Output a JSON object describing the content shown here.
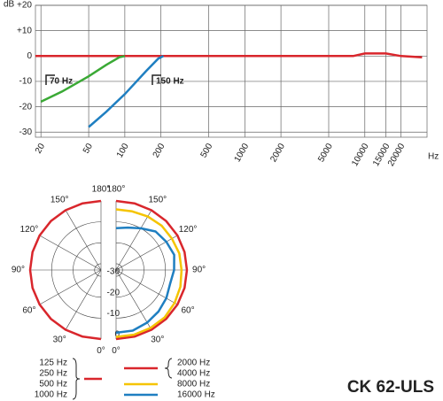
{
  "chart_data": [
    {
      "type": "line",
      "log_x": true,
      "grid": true,
      "ylabel": "dB",
      "xlabel": "Hz",
      "xlim": [
        18,
        33000
      ],
      "xticks": [
        20,
        50,
        100,
        200,
        500,
        1000,
        2000,
        5000,
        10000,
        15000,
        20000
      ],
      "ylim": [
        -32,
        20
      ],
      "yticks": [
        {
          "value": 20,
          "label": "+20"
        },
        {
          "value": 10,
          "label": "+10"
        },
        0,
        -10,
        -20,
        -30
      ],
      "annotations": [
        "70 Hz",
        "150 Hz"
      ],
      "series": [
        {
          "color": "#d9262c",
          "x": [
            18,
            100,
            1000,
            5000,
            8000,
            10000,
            12000,
            15000,
            20000,
            30000
          ],
          "values": [
            0,
            0,
            0,
            0,
            0,
            1,
            1,
            1,
            0,
            -0.5
          ]
        },
        {
          "color": "#3aa935",
          "x": [
            20,
            30,
            50,
            70,
            90,
            100
          ],
          "values": [
            -18,
            -14,
            -8,
            -3.5,
            -0.5,
            0
          ]
        },
        {
          "color": "#1f7fc1",
          "x": [
            50,
            70,
            100,
            150,
            190,
            210
          ],
          "values": [
            -28,
            -22,
            -15,
            -6,
            -1,
            0
          ]
        }
      ]
    },
    {
      "type": "polar",
      "rlim": [
        -33,
        0
      ],
      "rticks": [
        0,
        -10,
        -20,
        -30
      ],
      "thetaticks": [
        {
          "value": 0,
          "label": "0°"
        },
        {
          "value": 30,
          "label": "30°"
        },
        {
          "value": 60,
          "label": "60°"
        },
        {
          "value": 90,
          "label": "90°"
        },
        {
          "value": 120,
          "label": "120°"
        },
        {
          "value": 150,
          "label": "150°"
        },
        {
          "value": 180,
          "label": "180°"
        }
      ],
      "theta": [
        0,
        15,
        30,
        45,
        60,
        75,
        90,
        105,
        120,
        135,
        150,
        165,
        180
      ],
      "series": [
        {
          "names": [
            "125 Hz",
            "250 Hz",
            "500 Hz",
            "1000 Hz"
          ],
          "side": "left",
          "color": "#d9262c",
          "values": [
            0,
            0,
            0,
            0,
            0,
            0,
            0,
            0,
            0,
            0,
            0,
            0,
            0
          ]
        },
        {
          "names": [
            "2000 Hz",
            "4000 Hz"
          ],
          "side": "right",
          "color": "#d9262c",
          "values": [
            0,
            0,
            0,
            0,
            0,
            0,
            0,
            0,
            0,
            0,
            0,
            0,
            0
          ]
        },
        {
          "names": [
            "8000 Hz"
          ],
          "side": "right",
          "color": "#f5c400",
          "values": [
            -1,
            -1,
            -1,
            -1,
            -1.5,
            -2,
            -2.5,
            -2.5,
            -3,
            -3,
            -3.5,
            -4,
            -4
          ]
        },
        {
          "names": [
            "16000 Hz"
          ],
          "side": "right",
          "color": "#1f7fc1",
          "values": [
            -3,
            -3,
            -4,
            -5,
            -6,
            -7,
            -6,
            -5,
            -6,
            -7,
            -10,
            -12,
            -13
          ]
        }
      ]
    }
  ],
  "model": "CK 62-ULS"
}
